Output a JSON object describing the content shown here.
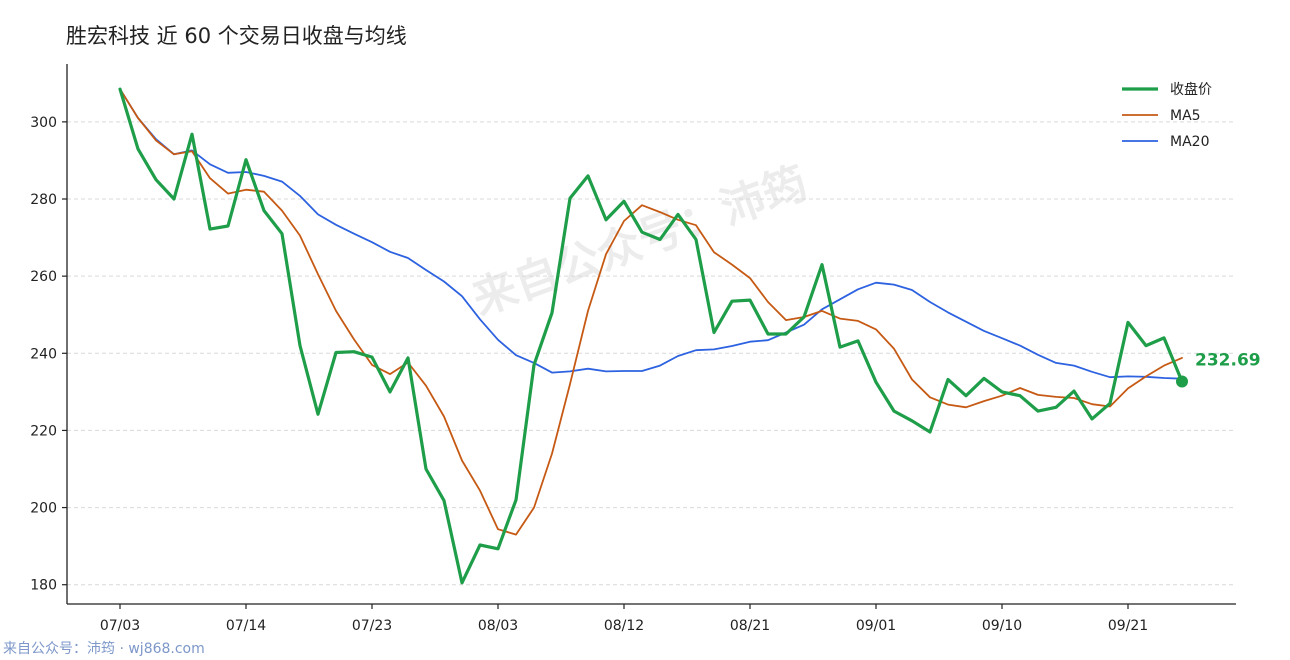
{
  "chart_data": {
    "type": "line",
    "title": "胜宏科技 近 60 个交易日收盘与均线",
    "xlabel": "",
    "ylabel": "",
    "ylim": [
      175,
      315
    ],
    "yticks": [
      180,
      200,
      220,
      240,
      260,
      280,
      300
    ],
    "grid": "horizontal dashed",
    "legend_position": "top-right",
    "x_tick_labels": [
      {
        "index": 0,
        "label": "07/03"
      },
      {
        "index": 7,
        "label": "07/14"
      },
      {
        "index": 14,
        "label": "07/23"
      },
      {
        "index": 21,
        "label": "08/03"
      },
      {
        "index": 28,
        "label": "08/12"
      },
      {
        "index": 35,
        "label": "08/21"
      },
      {
        "index": 42,
        "label": "09/01"
      },
      {
        "index": 49,
        "label": "09/10"
      },
      {
        "index": 56,
        "label": "09/21"
      }
    ],
    "series": [
      {
        "name": "收盘价",
        "color": "#1f9e4a",
        "values": [
          308.5,
          293.0,
          285.0,
          280.0,
          296.8,
          272.2,
          273.0,
          290.2,
          277.0,
          271.0,
          242.0,
          224.2,
          240.2,
          240.4,
          239.0,
          230.0,
          238.8,
          210.0,
          201.8,
          180.5,
          190.3,
          189.3,
          202.0,
          237.0,
          250.5,
          280.2,
          286.0,
          274.6,
          279.4,
          271.4,
          269.5,
          276.0,
          269.5,
          245.4,
          253.5,
          253.8,
          245.0,
          245.0,
          249.4,
          263.0,
          241.6,
          243.2,
          232.5,
          225.0,
          222.5,
          219.6,
          233.2,
          229.0,
          233.5,
          230.0,
          229.0,
          225.0,
          226.0,
          230.2,
          223.0,
          227.0,
          248.0,
          242.0,
          244.0,
          232.69
        ]
      },
      {
        "name": "MA5",
        "color": "#c65a14",
        "values": [
          308.5,
          301.0,
          295.2,
          291.6,
          292.4,
          285.4,
          281.4,
          282.4,
          281.9,
          277.0,
          270.5,
          260.5,
          251.0,
          243.6,
          237.0,
          234.6,
          237.6,
          231.6,
          223.6,
          212.2,
          204.4,
          194.4,
          193.0,
          200.0,
          214.0,
          232.0,
          251.0,
          265.7,
          274.3,
          278.4,
          276.6,
          274.6,
          273.2,
          266.2,
          263.0,
          259.5,
          253.3,
          248.6,
          249.4,
          251.0,
          249.0,
          248.4,
          246.2,
          241.2,
          233.2,
          228.6,
          226.7,
          226.0,
          227.6,
          229.0,
          231.0,
          229.2,
          228.7,
          228.4,
          226.8,
          226.2,
          230.9,
          234.0,
          236.8,
          238.8
        ]
      },
      {
        "name": "MA20",
        "color": "#2d62e0",
        "values": [
          308.5,
          301.0,
          295.5,
          291.6,
          292.6,
          289.0,
          286.8,
          287.0,
          286.0,
          284.5,
          280.8,
          276.0,
          273.3,
          271.0,
          268.8,
          266.3,
          264.7,
          261.6,
          258.6,
          254.8,
          248.8,
          243.5,
          239.5,
          237.5,
          235.0,
          235.3,
          236.0,
          235.3,
          235.4,
          235.4,
          236.8,
          239.3,
          240.8,
          241.0,
          241.9,
          243.0,
          243.4,
          245.4,
          247.4,
          251.4,
          254.0,
          256.6,
          258.3,
          257.8,
          256.4,
          253.3,
          250.6,
          248.2,
          245.8,
          243.9,
          242.0,
          239.6,
          237.5,
          236.8,
          235.2,
          233.8,
          234.0,
          233.9,
          233.6,
          233.4
        ]
      }
    ],
    "last_value_label": "232.69"
  },
  "watermark": "来自公众号：沛筠",
  "footer": "来自公众号：沛筠 · wj868.com"
}
